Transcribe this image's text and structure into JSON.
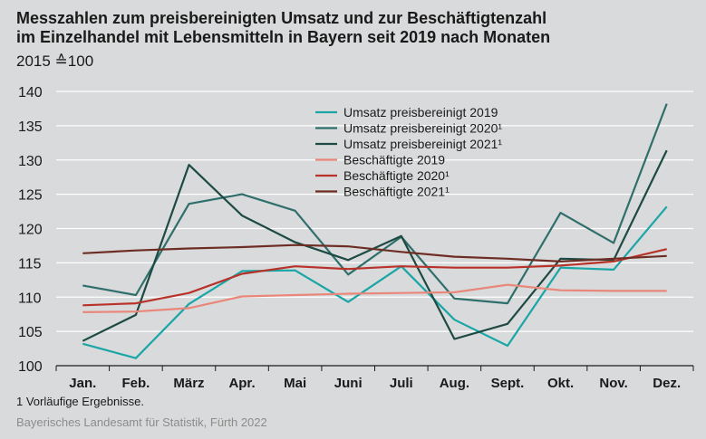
{
  "title_line1": "Messzahlen zum preisbereinigten Umsatz und zur Beschäftigtenzahl",
  "title_line2": "im Einzelhandel mit Lebensmitteln in Bayern seit 2019 nach Monaten",
  "subtitle": "2015 ≙100",
  "footnote": "1  Vorläufige Ergebnisse.",
  "source": "Bayerisches Landesamt für Statistik, Fürth 2022",
  "chart_data": {
    "type": "line",
    "categories": [
      "Jan.",
      "Feb.",
      "März",
      "Apr.",
      "Mai",
      "Juni",
      "Juli",
      "Aug.",
      "Sept.",
      "Okt.",
      "Nov.",
      "Dez."
    ],
    "ylim": [
      100,
      140
    ],
    "yticks": [
      100,
      105,
      110,
      115,
      120,
      125,
      130,
      135,
      140
    ],
    "grid": true,
    "legend_position": "top-center",
    "series": [
      {
        "name": "Umsatz preisbereinigt 2019",
        "color": "#1aa6a6",
        "values": [
          103.2,
          101.1,
          109.0,
          113.8,
          113.9,
          109.3,
          114.5,
          106.7,
          102.9,
          114.3,
          114.0,
          123.2
        ]
      },
      {
        "name": "Umsatz preisbereinigt 2020¹",
        "color": "#2f6f6b",
        "values": [
          111.7,
          110.3,
          123.6,
          125.0,
          122.6,
          113.3,
          118.8,
          109.8,
          109.1,
          122.3,
          117.9,
          138.2
        ]
      },
      {
        "name": "Umsatz preisbereinigt 2021¹",
        "color": "#1e4a44",
        "values": [
          103.6,
          107.4,
          129.3,
          121.9,
          118.0,
          115.4,
          118.9,
          103.9,
          106.1,
          115.6,
          115.4,
          131.4
        ]
      },
      {
        "name": "Beschäftigte 2019",
        "color": "#e8877a",
        "values": [
          107.8,
          107.9,
          108.4,
          110.1,
          110.3,
          110.5,
          110.6,
          110.7,
          111.8,
          111.0,
          110.9,
          110.9
        ]
      },
      {
        "name": "Beschäftigte 2020¹",
        "color": "#b8322a",
        "values": [
          108.8,
          109.1,
          110.6,
          113.4,
          114.5,
          114.1,
          114.5,
          114.3,
          114.3,
          114.6,
          115.2,
          117.0
        ]
      },
      {
        "name": "Beschäftigte 2021¹",
        "color": "#6e2d24",
        "values": [
          116.4,
          116.8,
          117.1,
          117.3,
          117.6,
          117.4,
          116.6,
          115.9,
          115.6,
          115.2,
          115.6,
          116.0
        ]
      }
    ]
  }
}
